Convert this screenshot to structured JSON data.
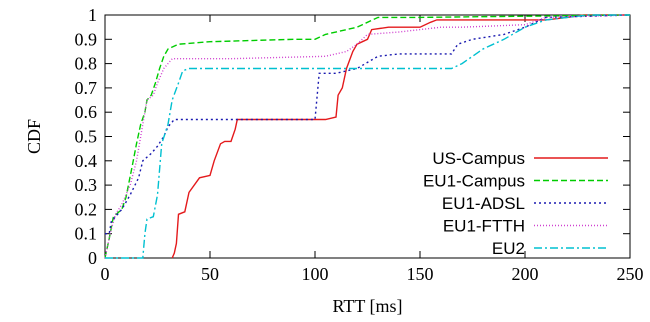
{
  "chart_data": {
    "type": "line",
    "xlabel": "RTT [ms]",
    "ylabel": "CDF",
    "xlim": [
      0,
      250
    ],
    "ylim": [
      0,
      1
    ],
    "x_ticks": [
      0,
      50,
      100,
      150,
      200,
      250
    ],
    "y_ticks": [
      0,
      0.1,
      0.2,
      0.3,
      0.4,
      0.5,
      0.6,
      0.7,
      0.8,
      0.9,
      1
    ],
    "grid": false,
    "legend_position": "bottom-right",
    "series": [
      {
        "name": "US-Campus",
        "color": "#e41a1c",
        "dash": "solid",
        "points": [
          [
            32,
            0
          ],
          [
            33,
            0.02
          ],
          [
            34,
            0.06
          ],
          [
            35,
            0.18
          ],
          [
            38,
            0.19
          ],
          [
            40,
            0.27
          ],
          [
            45,
            0.33
          ],
          [
            50,
            0.34
          ],
          [
            52,
            0.4
          ],
          [
            55,
            0.47
          ],
          [
            57,
            0.48
          ],
          [
            60,
            0.48
          ],
          [
            62,
            0.53
          ],
          [
            63,
            0.57
          ],
          [
            80,
            0.57
          ],
          [
            105,
            0.57
          ],
          [
            110,
            0.58
          ],
          [
            111,
            0.67
          ],
          [
            113,
            0.7
          ],
          [
            115,
            0.78
          ],
          [
            118,
            0.85
          ],
          [
            120,
            0.88
          ],
          [
            125,
            0.9
          ],
          [
            127,
            0.94
          ],
          [
            135,
            0.95
          ],
          [
            150,
            0.95
          ],
          [
            155,
            0.97
          ],
          [
            158,
            0.98
          ],
          [
            200,
            0.98
          ],
          [
            210,
            0.98
          ],
          [
            220,
            0.99
          ],
          [
            228,
            1
          ],
          [
            250,
            1
          ]
        ]
      },
      {
        "name": "EU1-Campus",
        "color": "#00cc00",
        "dash": "6,3",
        "points": [
          [
            0,
            0
          ],
          [
            2,
            0.08
          ],
          [
            4,
            0.17
          ],
          [
            8,
            0.2
          ],
          [
            10,
            0.25
          ],
          [
            13,
            0.38
          ],
          [
            15,
            0.47
          ],
          [
            17,
            0.55
          ],
          [
            19,
            0.6
          ],
          [
            20,
            0.65
          ],
          [
            22,
            0.67
          ],
          [
            24,
            0.72
          ],
          [
            26,
            0.78
          ],
          [
            28,
            0.83
          ],
          [
            30,
            0.86
          ],
          [
            35,
            0.88
          ],
          [
            50,
            0.89
          ],
          [
            90,
            0.9
          ],
          [
            100,
            0.9
          ],
          [
            105,
            0.92
          ],
          [
            120,
            0.95
          ],
          [
            130,
            0.99
          ],
          [
            150,
            0.99
          ],
          [
            250,
            1
          ]
        ]
      },
      {
        "name": "EU1-ADSL",
        "color": "#1a1ab0",
        "dash": "2,3",
        "points": [
          [
            0,
            0.1
          ],
          [
            2,
            0.1
          ],
          [
            3,
            0.15
          ],
          [
            8,
            0.2
          ],
          [
            12,
            0.26
          ],
          [
            16,
            0.33
          ],
          [
            18,
            0.4
          ],
          [
            22,
            0.43
          ],
          [
            25,
            0.46
          ],
          [
            28,
            0.5
          ],
          [
            30,
            0.54
          ],
          [
            33,
            0.57
          ],
          [
            100,
            0.57
          ],
          [
            102,
            0.76
          ],
          [
            110,
            0.76
          ],
          [
            120,
            0.78
          ],
          [
            130,
            0.83
          ],
          [
            140,
            0.84
          ],
          [
            165,
            0.84
          ],
          [
            168,
            0.88
          ],
          [
            175,
            0.9
          ],
          [
            190,
            0.92
          ],
          [
            200,
            0.95
          ],
          [
            210,
            0.99
          ],
          [
            250,
            1
          ]
        ]
      },
      {
        "name": "EU1-FTTH",
        "color": "#d040d0",
        "dash": "1,2",
        "points": [
          [
            0,
            0
          ],
          [
            3,
            0.12
          ],
          [
            5,
            0.18
          ],
          [
            8,
            0.22
          ],
          [
            12,
            0.3
          ],
          [
            15,
            0.4
          ],
          [
            18,
            0.55
          ],
          [
            20,
            0.65
          ],
          [
            23,
            0.67
          ],
          [
            25,
            0.72
          ],
          [
            28,
            0.78
          ],
          [
            32,
            0.82
          ],
          [
            60,
            0.82
          ],
          [
            105,
            0.83
          ],
          [
            115,
            0.85
          ],
          [
            120,
            0.88
          ],
          [
            125,
            0.92
          ],
          [
            140,
            0.93
          ],
          [
            160,
            0.95
          ],
          [
            170,
            0.95
          ],
          [
            200,
            0.96
          ],
          [
            210,
            0.99
          ],
          [
            250,
            1
          ]
        ]
      },
      {
        "name": "EU2",
        "color": "#00c0d0",
        "dash": "8,3,2,3",
        "points": [
          [
            0,
            0
          ],
          [
            18,
            0
          ],
          [
            19,
            0.1
          ],
          [
            20,
            0.16
          ],
          [
            23,
            0.17
          ],
          [
            25,
            0.26
          ],
          [
            27,
            0.47
          ],
          [
            30,
            0.55
          ],
          [
            32,
            0.65
          ],
          [
            35,
            0.72
          ],
          [
            37,
            0.77
          ],
          [
            40,
            0.78
          ],
          [
            150,
            0.78
          ],
          [
            165,
            0.78
          ],
          [
            170,
            0.8
          ],
          [
            180,
            0.86
          ],
          [
            190,
            0.9
          ],
          [
            200,
            0.95
          ],
          [
            210,
            0.98
          ],
          [
            230,
            1
          ],
          [
            250,
            1
          ]
        ]
      }
    ]
  }
}
